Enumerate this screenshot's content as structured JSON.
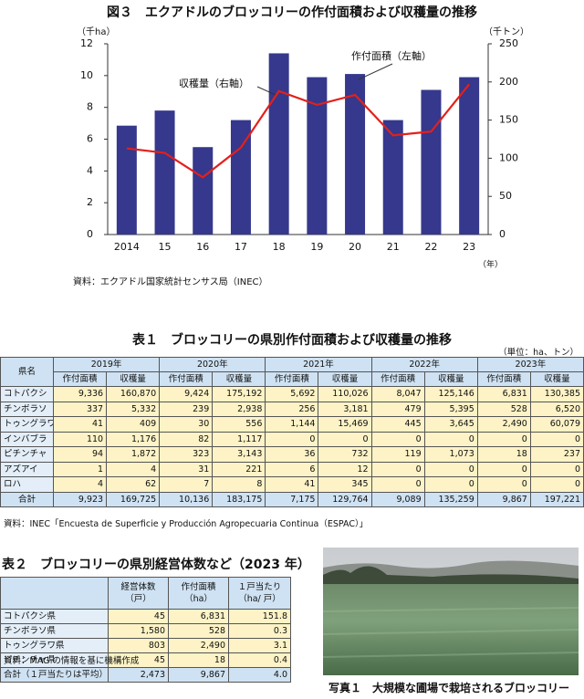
{
  "chart_data": {
    "type": "bar",
    "title": "図３　エクアドルのブロッコリーの作付面積および収穫量の推移",
    "y_label": "（千ha）",
    "y2_label": "（千トン）",
    "x_label": "（年）",
    "categories": [
      "2014",
      "15",
      "16",
      "17",
      "18",
      "19",
      "20",
      "21",
      "22",
      "23"
    ],
    "series": [
      {
        "name": "作付面積（左軸）",
        "type": "bar",
        "color": "#35388c",
        "values": [
          6.85,
          7.8,
          5.5,
          7.2,
          11.4,
          9.9,
          10.1,
          7.2,
          9.1,
          9.9
        ]
      },
      {
        "name": "収穫量（右軸）",
        "type": "line",
        "color": "#e3201b",
        "axis": "y2",
        "values": [
          113,
          107,
          75,
          114,
          188,
          170,
          183,
          130,
          135,
          197
        ]
      }
    ],
    "ylim": [
      0,
      12
    ],
    "yticks": [
      0,
      2,
      4,
      6,
      8,
      10,
      12
    ],
    "y2lim": [
      0,
      250
    ],
    "y2ticks": [
      0,
      50,
      100,
      150,
      200,
      250
    ],
    "grid": false,
    "source": "資料：エクアドル国家統計センサス局（INEC）"
  },
  "table1": {
    "title": "表１　ブロッコリーの県別作付面積および収穫量の推移",
    "unit": "（単位：ha、トン）",
    "corner": "県名",
    "years": [
      "2019年",
      "2020年",
      "2021年",
      "2022年",
      "2023年"
    ],
    "subheaders": [
      "作付面積",
      "収穫量"
    ],
    "rows": [
      [
        "コトパクシ",
        "9,336",
        "160,870",
        "9,424",
        "175,192",
        "5,692",
        "110,026",
        "8,047",
        "125,146",
        "6,831",
        "130,385"
      ],
      [
        "チンボラソ",
        "337",
        "5,332",
        "239",
        "2,938",
        "256",
        "3,181",
        "479",
        "5,395",
        "528",
        "6,520"
      ],
      [
        "トゥングラワ",
        "41",
        "409",
        "30",
        "556",
        "1,144",
        "15,469",
        "445",
        "3,645",
        "2,490",
        "60,079"
      ],
      [
        "インバブラ",
        "110",
        "1,176",
        "82",
        "1,117",
        "0",
        "0",
        "0",
        "0",
        "0",
        "0"
      ],
      [
        "ピチンチャ",
        "94",
        "1,872",
        "323",
        "3,143",
        "36",
        "732",
        "119",
        "1,073",
        "18",
        "237"
      ],
      [
        "アズアイ",
        "1",
        "4",
        "31",
        "221",
        "6",
        "12",
        "0",
        "0",
        "0",
        "0"
      ],
      [
        "ロハ",
        "4",
        "62",
        "7",
        "8",
        "41",
        "345",
        "0",
        "0",
        "0",
        "0"
      ],
      [
        "合計",
        "9,923",
        "169,725",
        "10,136",
        "183,175",
        "7,175",
        "129,764",
        "9,089",
        "135,259",
        "9,867",
        "197,221"
      ]
    ],
    "source": "資料：INEC「Encuesta de Superficie y Producción Agropecuaria Continua（ESPAC）」"
  },
  "table2": {
    "title": "表２　ブロッコリーの県別経営体数など（2023 年）",
    "headers": [
      [
        "経営体数",
        "（戸）"
      ],
      [
        "作付面積",
        "（ha）"
      ],
      [
        "１戸当たり",
        "（ha/ 戸）"
      ]
    ],
    "rows": [
      [
        "コトパクシ県",
        "45",
        "6,831",
        "151.8"
      ],
      [
        "チンボラソ県",
        "1,580",
        "528",
        "0.3"
      ],
      [
        "トゥングラワ県",
        "803",
        "2,490",
        "3.1"
      ],
      [
        "ピチンチャ県",
        "45",
        "18",
        "0.4"
      ],
      [
        "合計（１戸当たりは平均）",
        "2,473",
        "9,867",
        "4.0"
      ]
    ],
    "source": "資料：MAG の情報を基に機構作成"
  },
  "photo": {
    "caption": "写真１　大規模な圃場で栽培されるブロッコリー"
  }
}
